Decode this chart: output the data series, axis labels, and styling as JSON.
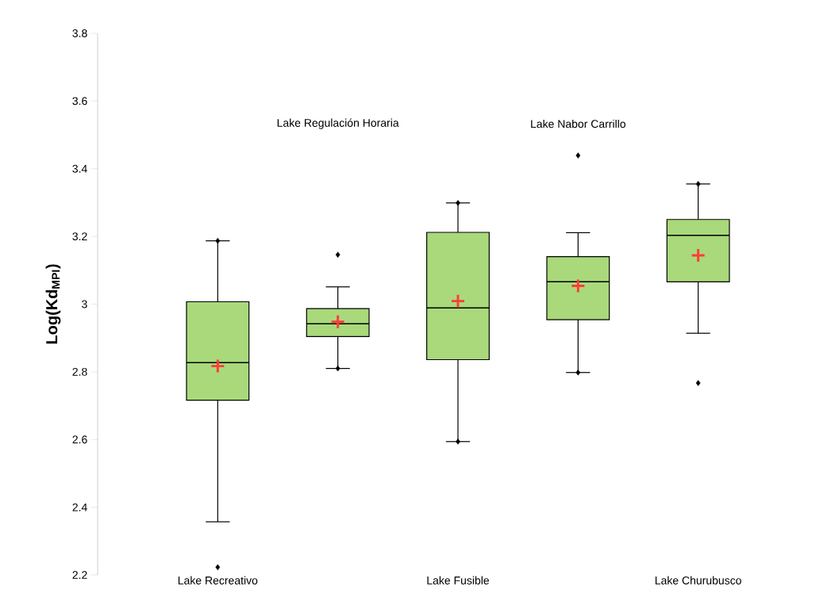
{
  "chart_data": {
    "type": "box",
    "ylabel": "Log(Kd$_{MPI}$)",
    "categories": [
      "Lake Recreativo",
      "Lake Regulación Horaria",
      "Lake Fusible",
      "Lake Nabor Carrillo",
      "Lake Churubusco"
    ],
    "color": "#a9d97a",
    "marker": "diamond",
    "grid": false,
    "boxes": [
      {
        "low": 2.357,
        "q1": 2.716,
        "median": 2.827,
        "q3": 3.007,
        "high": 3.187,
        "mean": 2.817,
        "outliers": [
          2.223,
          3.187
        ]
      },
      {
        "low": 2.81,
        "q1": 2.904,
        "median": 2.942,
        "q3": 2.987,
        "high": 3.051,
        "mean": 2.948,
        "outliers": [
          3.146,
          2.81
        ]
      },
      {
        "low": 2.594,
        "q1": 2.836,
        "median": 2.989,
        "q3": 3.212,
        "high": 3.299,
        "mean": 3.009,
        "outliers": [
          2.594,
          3.299
        ]
      },
      {
        "low": 2.798,
        "q1": 2.954,
        "median": 3.066,
        "q3": 3.14,
        "high": 3.211,
        "mean": 3.054,
        "outliers": [
          3.439,
          2.798
        ]
      },
      {
        "low": 2.914,
        "q1": 3.066,
        "median": 3.203,
        "q3": 3.25,
        "high": 3.355,
        "mean": 3.144,
        "outliers": [
          2.767,
          3.355
        ]
      }
    ],
    "ylim": [
      2.2,
      3.8
    ],
    "yticks": [
      2.2,
      2.4,
      2.6,
      2.8,
      {
        "value": 3.0,
        "label": "3"
      },
      3.2,
      3.4,
      3.6,
      3.8
    ]
  }
}
